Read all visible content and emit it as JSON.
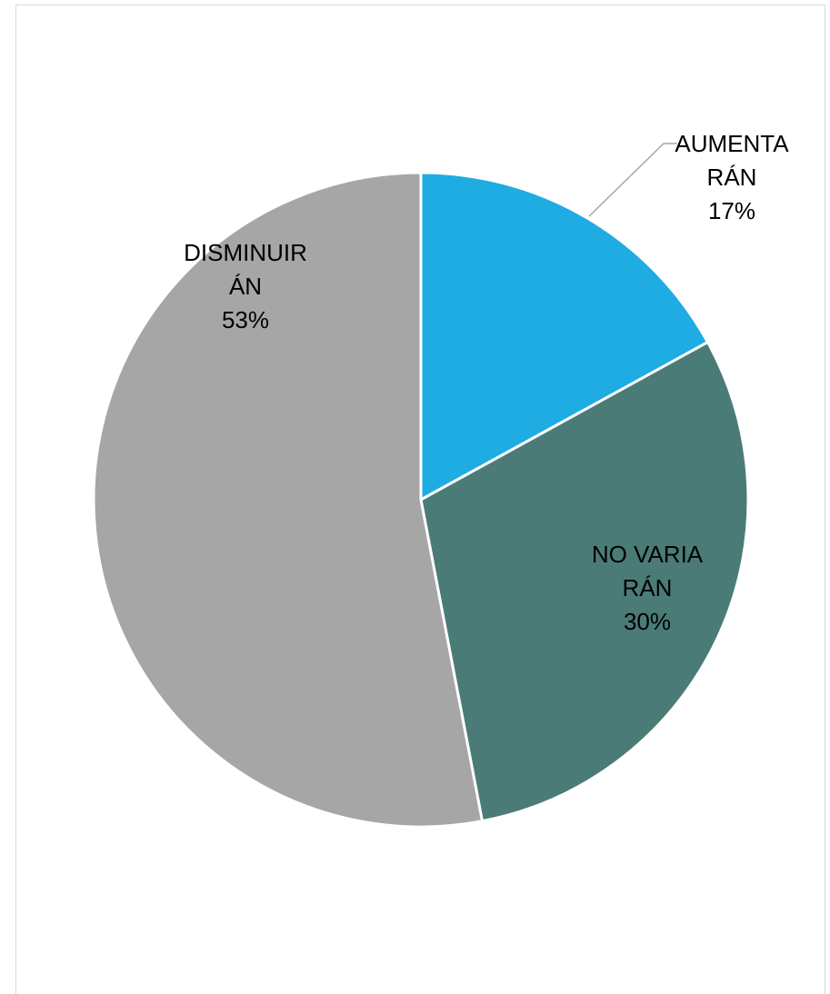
{
  "chart_data": {
    "type": "pie",
    "categories": [
      "AUMENTARÁN",
      "NO VARIARÁN",
      "DISMINUIRÁN"
    ],
    "values": [
      17,
      30,
      53
    ],
    "value_labels": [
      "17%",
      "30%",
      "53%"
    ],
    "colors": [
      "#1face3",
      "#4a7b77",
      "#a6a6a6"
    ]
  }
}
